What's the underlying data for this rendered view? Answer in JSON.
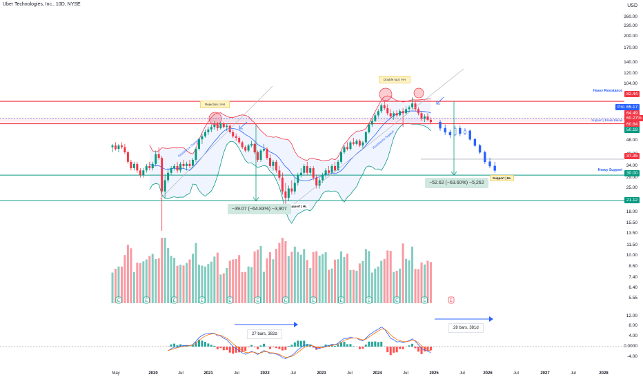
{
  "title": "Uber Technologies, Inc., 10D, NYSE",
  "currency": "USD",
  "chart_data": [
    {
      "type": "candlestick",
      "scale": "log",
      "title": "Uber Technologies, Inc., 10D, NYSE",
      "price_axis_ticks": [
        "260.00",
        "230.00",
        "200.00",
        "170.00",
        "140.00",
        "120.00",
        "104.00",
        "88.00",
        "76.00",
        "64.00",
        "56.00",
        "48.00",
        "40.00",
        "34.00",
        "29.00",
        "25.00",
        "21.00",
        "18.00",
        "15.50",
        "13.50",
        "11.50",
        "10.00",
        "8.60",
        "7.40",
        "6.40",
        "5.55"
      ],
      "x_axis_ticks": [
        "May",
        "2020",
        "Jul",
        "2021",
        "Jul",
        "2022",
        "Jul",
        "2023",
        "Jul",
        "2024",
        "Jul",
        "2025",
        "Jul",
        "2026",
        "Jul",
        "2027",
        "Jul",
        "2028"
      ],
      "price_tags": [
        {
          "value": "82.44",
          "color": "#f23645"
        },
        {
          "value": "Prot",
          "color": "#2962ff"
        },
        {
          "value": "65.17",
          "color": "#2962ff"
        },
        {
          "value": "64.49",
          "color": "#f23645"
        },
        {
          "value": "60.27%",
          "color": "#f23645"
        },
        {
          "value": "60.64",
          "color": "#f23645"
        },
        {
          "value": "50.19",
          "color": "#089981"
        },
        {
          "value": "37.35",
          "color": "#f23645"
        },
        {
          "value": "30.00",
          "color": "#089981"
        },
        {
          "value": "21.12",
          "color": "#089981"
        }
      ],
      "levels": [
        {
          "label": "Heavy Resistance",
          "value": 82.44
        },
        {
          "label": "Support | Break Below",
          "value": 60.64
        },
        {
          "label": "Heavy Support",
          "value": 30.0
        },
        {
          "label": "",
          "value": 21.12
        }
      ],
      "annotations": [
        {
          "text": "Rejection | HH"
        },
        {
          "text": "Double top | HH"
        },
        {
          "text": "Resistance Support"
        },
        {
          "text": "Resistance Support"
        },
        {
          "text": "Support | HL"
        },
        {
          "text": "Support | HL"
        }
      ],
      "measurements": [
        {
          "text": "−39.07 (−64.83%) −3,907"
        },
        {
          "text": "−52.62 (−63.60%) −5,262"
        }
      ],
      "candles": [
        {
          "o": 44,
          "h": 46,
          "l": 41,
          "c": 45
        },
        {
          "o": 45,
          "h": 47,
          "l": 42,
          "c": 43
        },
        {
          "o": 43,
          "h": 46,
          "l": 41,
          "c": 45
        },
        {
          "o": 45,
          "h": 47,
          "l": 43,
          "c": 44
        },
        {
          "o": 44,
          "h": 46,
          "l": 40,
          "c": 41
        },
        {
          "o": 41,
          "h": 42,
          "l": 35,
          "c": 36
        },
        {
          "o": 36,
          "h": 37,
          "l": 32,
          "c": 33
        },
        {
          "o": 33,
          "h": 36,
          "l": 32,
          "c": 35
        },
        {
          "o": 35,
          "h": 36,
          "l": 31,
          "c": 32
        },
        {
          "o": 32,
          "h": 33,
          "l": 29,
          "c": 30
        },
        {
          "o": 30,
          "h": 33,
          "l": 29,
          "c": 32
        },
        {
          "o": 32,
          "h": 35,
          "l": 31,
          "c": 34
        },
        {
          "o": 34,
          "h": 36,
          "l": 32,
          "c": 33
        },
        {
          "o": 33,
          "h": 36,
          "l": 32,
          "c": 35
        },
        {
          "o": 35,
          "h": 42,
          "l": 34,
          "c": 40
        },
        {
          "o": 40,
          "h": 44,
          "l": 37,
          "c": 38
        },
        {
          "o": 38,
          "h": 39,
          "l": 14,
          "c": 24
        },
        {
          "o": 24,
          "h": 30,
          "l": 22,
          "c": 28
        },
        {
          "o": 28,
          "h": 33,
          "l": 27,
          "c": 31
        },
        {
          "o": 31,
          "h": 34,
          "l": 30,
          "c": 33
        },
        {
          "o": 33,
          "h": 35,
          "l": 32,
          "c": 34
        },
        {
          "o": 34,
          "h": 36,
          "l": 31,
          "c": 32
        },
        {
          "o": 32,
          "h": 36,
          "l": 31,
          "c": 35
        },
        {
          "o": 35,
          "h": 37,
          "l": 33,
          "c": 34
        },
        {
          "o": 34,
          "h": 36,
          "l": 32,
          "c": 35
        },
        {
          "o": 35,
          "h": 37,
          "l": 33,
          "c": 34
        },
        {
          "o": 34,
          "h": 38,
          "l": 33,
          "c": 37
        },
        {
          "o": 37,
          "h": 44,
          "l": 36,
          "c": 43
        },
        {
          "o": 43,
          "h": 50,
          "l": 42,
          "c": 49
        },
        {
          "o": 49,
          "h": 53,
          "l": 46,
          "c": 51
        },
        {
          "o": 51,
          "h": 56,
          "l": 50,
          "c": 54
        },
        {
          "o": 54,
          "h": 58,
          "l": 52,
          "c": 56
        },
        {
          "o": 56,
          "h": 60,
          "l": 54,
          "c": 58
        },
        {
          "o": 58,
          "h": 63,
          "l": 56,
          "c": 60
        },
        {
          "o": 60,
          "h": 62,
          "l": 55,
          "c": 57
        },
        {
          "o": 57,
          "h": 62,
          "l": 56,
          "c": 61
        },
        {
          "o": 61,
          "h": 62,
          "l": 57,
          "c": 58
        },
        {
          "o": 58,
          "h": 61,
          "l": 55,
          "c": 59
        },
        {
          "o": 59,
          "h": 60,
          "l": 53,
          "c": 54
        },
        {
          "o": 54,
          "h": 56,
          "l": 50,
          "c": 51
        },
        {
          "o": 51,
          "h": 53,
          "l": 48,
          "c": 50
        },
        {
          "o": 50,
          "h": 51,
          "l": 46,
          "c": 47
        },
        {
          "o": 47,
          "h": 48,
          "l": 43,
          "c": 44
        },
        {
          "o": 44,
          "h": 45,
          "l": 41,
          "c": 42
        },
        {
          "o": 42,
          "h": 46,
          "l": 41,
          "c": 45
        },
        {
          "o": 45,
          "h": 48,
          "l": 44,
          "c": 46
        },
        {
          "o": 46,
          "h": 47,
          "l": 40,
          "c": 41
        },
        {
          "o": 41,
          "h": 42,
          "l": 36,
          "c": 37
        },
        {
          "o": 37,
          "h": 43,
          "l": 36,
          "c": 42
        },
        {
          "o": 42,
          "h": 46,
          "l": 41,
          "c": 43
        },
        {
          "o": 43,
          "h": 44,
          "l": 37,
          "c": 38
        },
        {
          "o": 38,
          "h": 40,
          "l": 33,
          "c": 34
        },
        {
          "o": 34,
          "h": 37,
          "l": 32,
          "c": 36
        },
        {
          "o": 36,
          "h": 37,
          "l": 31,
          "c": 32
        },
        {
          "o": 32,
          "h": 34,
          "l": 28,
          "c": 29
        },
        {
          "o": 29,
          "h": 31,
          "l": 23,
          "c": 24
        },
        {
          "o": 24,
          "h": 27,
          "l": 20,
          "c": 22
        },
        {
          "o": 22,
          "h": 26,
          "l": 21,
          "c": 25
        },
        {
          "o": 25,
          "h": 28,
          "l": 23,
          "c": 24
        },
        {
          "o": 24,
          "h": 29,
          "l": 23,
          "c": 27
        },
        {
          "o": 27,
          "h": 31,
          "l": 26,
          "c": 30
        },
        {
          "o": 30,
          "h": 33,
          "l": 29,
          "c": 31
        },
        {
          "o": 31,
          "h": 35,
          "l": 30,
          "c": 34
        },
        {
          "o": 34,
          "h": 36,
          "l": 30,
          "c": 31
        },
        {
          "o": 31,
          "h": 34,
          "l": 30,
          "c": 33
        },
        {
          "o": 33,
          "h": 34,
          "l": 28,
          "c": 29
        },
        {
          "o": 29,
          "h": 30,
          "l": 25,
          "c": 26
        },
        {
          "o": 26,
          "h": 29,
          "l": 25,
          "c": 28
        },
        {
          "o": 28,
          "h": 31,
          "l": 27,
          "c": 30
        },
        {
          "o": 30,
          "h": 33,
          "l": 29,
          "c": 32
        },
        {
          "o": 32,
          "h": 34,
          "l": 30,
          "c": 31
        },
        {
          "o": 31,
          "h": 35,
          "l": 31,
          "c": 34
        },
        {
          "o": 34,
          "h": 36,
          "l": 31,
          "c": 32
        },
        {
          "o": 32,
          "h": 37,
          "l": 32,
          "c": 36
        },
        {
          "o": 36,
          "h": 42,
          "l": 35,
          "c": 41
        },
        {
          "o": 41,
          "h": 45,
          "l": 40,
          "c": 44
        },
        {
          "o": 44,
          "h": 47,
          "l": 42,
          "c": 43
        },
        {
          "o": 43,
          "h": 48,
          "l": 42,
          "c": 47
        },
        {
          "o": 47,
          "h": 50,
          "l": 45,
          "c": 46
        },
        {
          "o": 46,
          "h": 49,
          "l": 45,
          "c": 48
        },
        {
          "o": 48,
          "h": 49,
          "l": 44,
          "c": 45
        },
        {
          "o": 45,
          "h": 48,
          "l": 43,
          "c": 47
        },
        {
          "o": 47,
          "h": 55,
          "l": 46,
          "c": 54
        },
        {
          "o": 54,
          "h": 61,
          "l": 53,
          "c": 60
        },
        {
          "o": 60,
          "h": 65,
          "l": 58,
          "c": 63
        },
        {
          "o": 63,
          "h": 70,
          "l": 62,
          "c": 68
        },
        {
          "o": 68,
          "h": 74,
          "l": 66,
          "c": 72
        },
        {
          "o": 72,
          "h": 80,
          "l": 70,
          "c": 78
        },
        {
          "o": 78,
          "h": 82,
          "l": 73,
          "c": 75
        },
        {
          "o": 75,
          "h": 79,
          "l": 68,
          "c": 70
        },
        {
          "o": 70,
          "h": 74,
          "l": 65,
          "c": 67
        },
        {
          "o": 67,
          "h": 72,
          "l": 64,
          "c": 70
        },
        {
          "o": 70,
          "h": 73,
          "l": 66,
          "c": 68
        },
        {
          "o": 68,
          "h": 74,
          "l": 67,
          "c": 72
        },
        {
          "o": 72,
          "h": 75,
          "l": 58,
          "c": 70
        },
        {
          "o": 70,
          "h": 77,
          "l": 68,
          "c": 74
        },
        {
          "o": 74,
          "h": 78,
          "l": 71,
          "c": 76
        },
        {
          "o": 76,
          "h": 87,
          "l": 74,
          "c": 80
        },
        {
          "o": 80,
          "h": 82,
          "l": 72,
          "c": 74
        },
        {
          "o": 74,
          "h": 76,
          "l": 68,
          "c": 70
        },
        {
          "o": 70,
          "h": 72,
          "l": 63,
          "c": 65
        },
        {
          "o": 65,
          "h": 69,
          "l": 62,
          "c": 67
        },
        {
          "o": 67,
          "h": 70,
          "l": 63,
          "c": 64
        },
        {
          "o": 64,
          "h": 66,
          "l": 61,
          "c": 62
        }
      ],
      "projection_points": [
        {
          "o": 62,
          "h": 64,
          "l": 55,
          "c": 57
        },
        {
          "o": 57,
          "h": 60,
          "l": 52,
          "c": 54
        },
        {
          "o": 54,
          "h": 56,
          "l": 50,
          "c": 52
        },
        {
          "o": 52,
          "h": 59,
          "l": 51,
          "c": 57
        },
        {
          "o": 57,
          "h": 59,
          "l": 51,
          "c": 53
        },
        {
          "o": 53,
          "h": 57,
          "l": 52,
          "c": 55
        },
        {
          "o": 55,
          "h": 56,
          "l": 48,
          "c": 49
        },
        {
          "o": 49,
          "h": 50,
          "l": 44,
          "c": 45
        },
        {
          "o": 45,
          "h": 46,
          "l": 40,
          "c": 41
        },
        {
          "o": 41,
          "h": 42,
          "l": 35,
          "c": 36
        },
        {
          "o": 36,
          "h": 38,
          "l": 33,
          "c": 34
        },
        {
          "o": 34,
          "h": 36,
          "l": 31,
          "c": 32
        }
      ],
      "volume_axis": [
        "5.55"
      ],
      "earnings_marker": "E",
      "macd": {
        "axis_ticks": [
          "12.00",
          "8.00",
          "4.00",
          "0.0000",
          "-4.00"
        ],
        "notes": [
          "27 bars, 382d",
          "28 bars, 381d"
        ]
      }
    }
  ]
}
